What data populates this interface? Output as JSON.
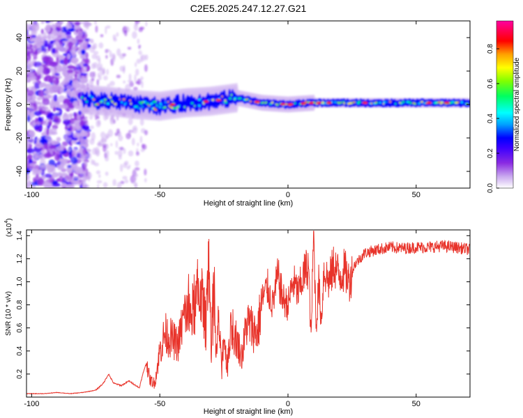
{
  "title": "C2E5.2025.247.12.27.G21",
  "chart_data": [
    {
      "type": "heatmap",
      "title": "C2E5.2025.247.12.27.G21",
      "xlabel": "Height of straight line (km)",
      "ylabel": "Frequency (Hz)",
      "xlim": [
        -102,
        71
      ],
      "ylim": [
        -50,
        50
      ],
      "x_ticks": [
        -100,
        -50,
        0,
        50
      ],
      "y_ticks": [
        -40,
        -20,
        0,
        20,
        40
      ],
      "x_tick_labels": [
        "-100",
        "-50",
        "0",
        "50"
      ],
      "y_tick_labels": [
        "-40",
        "-20",
        "0",
        "20",
        "40"
      ],
      "colorbar": {
        "label": "Normalized spectral amplitude",
        "range": [
          0,
          0.96
        ],
        "ticks": [
          0.0,
          0.2,
          0.4,
          0.6,
          0.8
        ],
        "tick_labels": [
          "0.0",
          "0.2",
          "0.4",
          "0.6",
          "0.8"
        ],
        "colors": [
          "#ffffff",
          "#c9a8ef",
          "#8a2be2",
          "#3c00ff",
          "#0000ff",
          "#00a0ff",
          "#00ffff",
          "#00ff60",
          "#80ff00",
          "#ffff00",
          "#ffa000",
          "#ff0000",
          "#ff00a0"
        ]
      },
      "ridge": {
        "description_values": "dominant frequency track in data units",
        "x": [
          -80,
          -70,
          -60,
          -50,
          -40,
          -30,
          -20,
          -10,
          0,
          10,
          20,
          40,
          71
        ],
        "y": [
          3,
          2,
          0,
          -1,
          1,
          2,
          4,
          1,
          0,
          1,
          1,
          1,
          1
        ]
      }
    },
    {
      "type": "line",
      "xlabel": "Height of straight line (km)",
      "ylabel": "SNR (10 * v/v)",
      "multiplier_label": "(x10",
      "multiplier_exponent": "4",
      "multiplier_close": ")",
      "xlim": [
        -102,
        71
      ],
      "ylim": [
        0,
        1.45
      ],
      "x_ticks": [
        -100,
        -50,
        0,
        50
      ],
      "y_ticks": [
        0.2,
        0.4,
        0.6,
        0.8,
        1.0,
        1.2,
        1.4
      ],
      "x_tick_labels": [
        "-100",
        "-50",
        "0",
        "50"
      ],
      "y_tick_labels": [
        "0.2",
        "0.4",
        "0.6",
        "0.8",
        "1.0",
        "1.2",
        "1.4"
      ],
      "series": [
        {
          "name": "SNR",
          "color": "#e8332a",
          "x": [
            -102,
            -95,
            -90,
            -85,
            -80,
            -75,
            -72,
            -70,
            -68,
            -65,
            -62,
            -58,
            -56,
            -55,
            -54,
            -52,
            -50,
            -48,
            -45,
            -43,
            -40,
            -38,
            -36,
            -34,
            -32,
            -31,
            -30,
            -29,
            -28,
            -27,
            -26,
            -25,
            -24,
            -22,
            -20,
            -18,
            -16,
            -14,
            -12,
            -10,
            -8,
            -6,
            -4,
            -2,
            0,
            2,
            4,
            6,
            8,
            9,
            10,
            11,
            12,
            13,
            14,
            16,
            18,
            20,
            22,
            24,
            26,
            28,
            30,
            35,
            40,
            45,
            50,
            55,
            60,
            65,
            71
          ],
          "y": [
            0.03,
            0.03,
            0.04,
            0.03,
            0.04,
            0.06,
            0.12,
            0.2,
            0.12,
            0.1,
            0.14,
            0.08,
            0.25,
            0.3,
            0.15,
            0.12,
            0.4,
            0.55,
            0.5,
            0.45,
            0.75,
            0.7,
            0.8,
            0.95,
            0.6,
            1.4,
            0.35,
            1.0,
            0.3,
            0.7,
            0.25,
            0.55,
            0.3,
            0.6,
            0.5,
            0.35,
            0.65,
            0.6,
            0.55,
            0.85,
            0.95,
            0.8,
            1.05,
            0.85,
            0.8,
            1.0,
            0.9,
            1.05,
            1.15,
            0.5,
            1.45,
            0.6,
            1.0,
            0.65,
            1.1,
            1.0,
            1.15,
            1.05,
            1.1,
            1.0,
            1.15,
            1.2,
            1.25,
            1.28,
            1.3,
            1.29,
            1.3,
            1.3,
            1.31,
            1.3,
            1.28
          ]
        }
      ]
    }
  ]
}
